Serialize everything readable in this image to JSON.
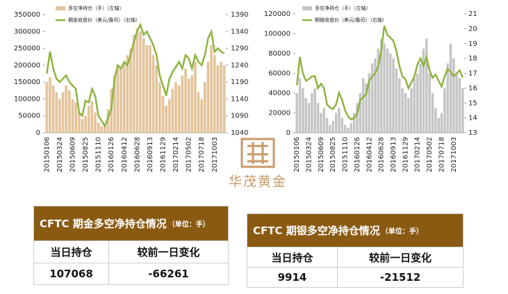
{
  "chart_data": [
    {
      "type": "combo",
      "categories": [
        "20150106",
        null,
        null,
        null,
        "20150324",
        null,
        null,
        null,
        "20150609",
        null,
        null,
        null,
        "20150825",
        null,
        null,
        null,
        "20151110",
        null,
        null,
        null,
        "20160126",
        null,
        null,
        null,
        "20160412",
        null,
        null,
        null,
        "20160628",
        null,
        null,
        null,
        "20160913",
        null,
        null,
        null,
        "20161129",
        null,
        null,
        null,
        "20170214",
        null,
        null,
        null,
        "20170502",
        null,
        null,
        null,
        "20170718",
        null,
        null,
        null,
        "20171003",
        null,
        null,
        null
      ],
      "series": [
        {
          "name": "多空净持仓（手）（左轴）",
          "type": "bar",
          "color": "#e3c49c",
          "values": [
            150000,
            165000,
            140000,
            120000,
            100000,
            120000,
            140000,
            125000,
            100000,
            90000,
            60000,
            40000,
            50000,
            80000,
            95000,
            60000,
            30000,
            20000,
            25000,
            70000,
            130000,
            170000,
            200000,
            190000,
            210000,
            230000,
            250000,
            290000,
            310000,
            300000,
            280000,
            260000,
            260000,
            230000,
            200000,
            150000,
            110000,
            80000,
            100000,
            130000,
            150000,
            140000,
            170000,
            190000,
            160000,
            170000,
            210000,
            120000,
            100000,
            150000,
            210000,
            260000,
            230000,
            200000,
            210000,
            200000
          ]
        },
        {
          "name": "期金收盘价（美元/盎司）（右轴）",
          "type": "line",
          "axis": "y2",
          "color": "#8db33f",
          "values": [
            1215,
            1280,
            1230,
            1200,
            1190,
            1200,
            1210,
            1190,
            1180,
            1170,
            1100,
            1090,
            1135,
            1130,
            1170,
            1150,
            1090,
            1075,
            1060,
            1085,
            1110,
            1200,
            1240,
            1230,
            1250,
            1240,
            1270,
            1310,
            1340,
            1360,
            1330,
            1340,
            1320,
            1300,
            1270,
            1210,
            1180,
            1150,
            1200,
            1220,
            1235,
            1250,
            1230,
            1270,
            1260,
            1230,
            1270,
            1250,
            1240,
            1270,
            1320,
            1340,
            1280,
            1290,
            1280,
            1275
          ]
        }
      ],
      "ylim": [
        0,
        350000
      ],
      "yticks": [
        0,
        50000,
        100000,
        150000,
        200000,
        250000,
        300000,
        350000
      ],
      "y2lim": [
        1040,
        1390
      ],
      "y2ticks": [
        1040,
        1090,
        1140,
        1190,
        1240,
        1290,
        1340,
        1390
      ]
    },
    {
      "type": "combo",
      "categories": [
        "20150106",
        null,
        null,
        null,
        "20150324",
        null,
        null,
        null,
        "20150609",
        null,
        null,
        null,
        "20150825",
        null,
        null,
        null,
        "20151110",
        null,
        null,
        null,
        "20160126",
        null,
        null,
        null,
        "20160412",
        null,
        null,
        null,
        "20160628",
        null,
        null,
        null,
        "20160913",
        null,
        null,
        null,
        "20161129",
        null,
        null,
        null,
        "20170214",
        null,
        null,
        null,
        "20170502",
        null,
        null,
        null,
        "20170718",
        null,
        null,
        null,
        "20171003",
        null,
        null,
        null
      ],
      "series": [
        {
          "name": "多空净持仓（手）（左轴）",
          "type": "bar",
          "color": "#c4c4c4",
          "values": [
            40000,
            55000,
            45000,
            35000,
            30000,
            40000,
            45000,
            30000,
            20000,
            25000,
            15000,
            8000,
            12000,
            20000,
            25000,
            15000,
            8000,
            5000,
            10000,
            20000,
            30000,
            40000,
            55000,
            50000,
            60000,
            70000,
            75000,
            85000,
            95000,
            90000,
            85000,
            80000,
            75000,
            65000,
            55000,
            45000,
            40000,
            35000,
            45000,
            55000,
            60000,
            70000,
            85000,
            95000,
            60000,
            40000,
            25000,
            15000,
            20000,
            45000,
            70000,
            90000,
            75000,
            60000,
            55000,
            45000
          ]
        },
        {
          "name": "期银收盘价（美元/盎司）（右轴）",
          "type": "line",
          "axis": "y2",
          "color": "#8db33f",
          "values": [
            16.2,
            18.1,
            17.0,
            16.5,
            16.6,
            16.8,
            16.8,
            16.0,
            16.3,
            16.0,
            14.9,
            14.7,
            14.6,
            14.9,
            15.7,
            15.2,
            14.5,
            14.1,
            13.9,
            14.0,
            14.3,
            15.2,
            15.4,
            15.6,
            16.5,
            16.8,
            17.0,
            17.5,
            18.5,
            20.2,
            19.6,
            19.4,
            19.2,
            18.5,
            17.5,
            16.8,
            16.6,
            16.0,
            16.4,
            16.8,
            17.6,
            18.0,
            17.5,
            18.1,
            17.2,
            16.7,
            16.9,
            16.5,
            16.1,
            16.8,
            17.3,
            17.1,
            16.8,
            17.0,
            17.2,
            16.7
          ]
        }
      ],
      "ylim": [
        0,
        120000
      ],
      "yticks": [
        0,
        20000,
        40000,
        60000,
        80000,
        100000,
        120000
      ],
      "y2lim": [
        13,
        21
      ],
      "y2ticks": [
        13,
        14,
        15,
        16,
        17,
        18,
        19,
        20,
        21
      ]
    }
  ],
  "logo": {
    "text": "华茂黄金"
  },
  "tables": [
    {
      "title": "CFTC 期金多空净持仓情况",
      "unit": "（单位：手）",
      "header": [
        "当日持仓",
        "较前一日变化"
      ],
      "row": [
        107068,
        -66261
      ]
    },
    {
      "title": "CFTC 期银多空净持仓情况",
      "unit": "（单位：手）",
      "header": [
        "当日持仓",
        "较前一日变化"
      ],
      "row": [
        9914,
        -21512
      ]
    }
  ]
}
